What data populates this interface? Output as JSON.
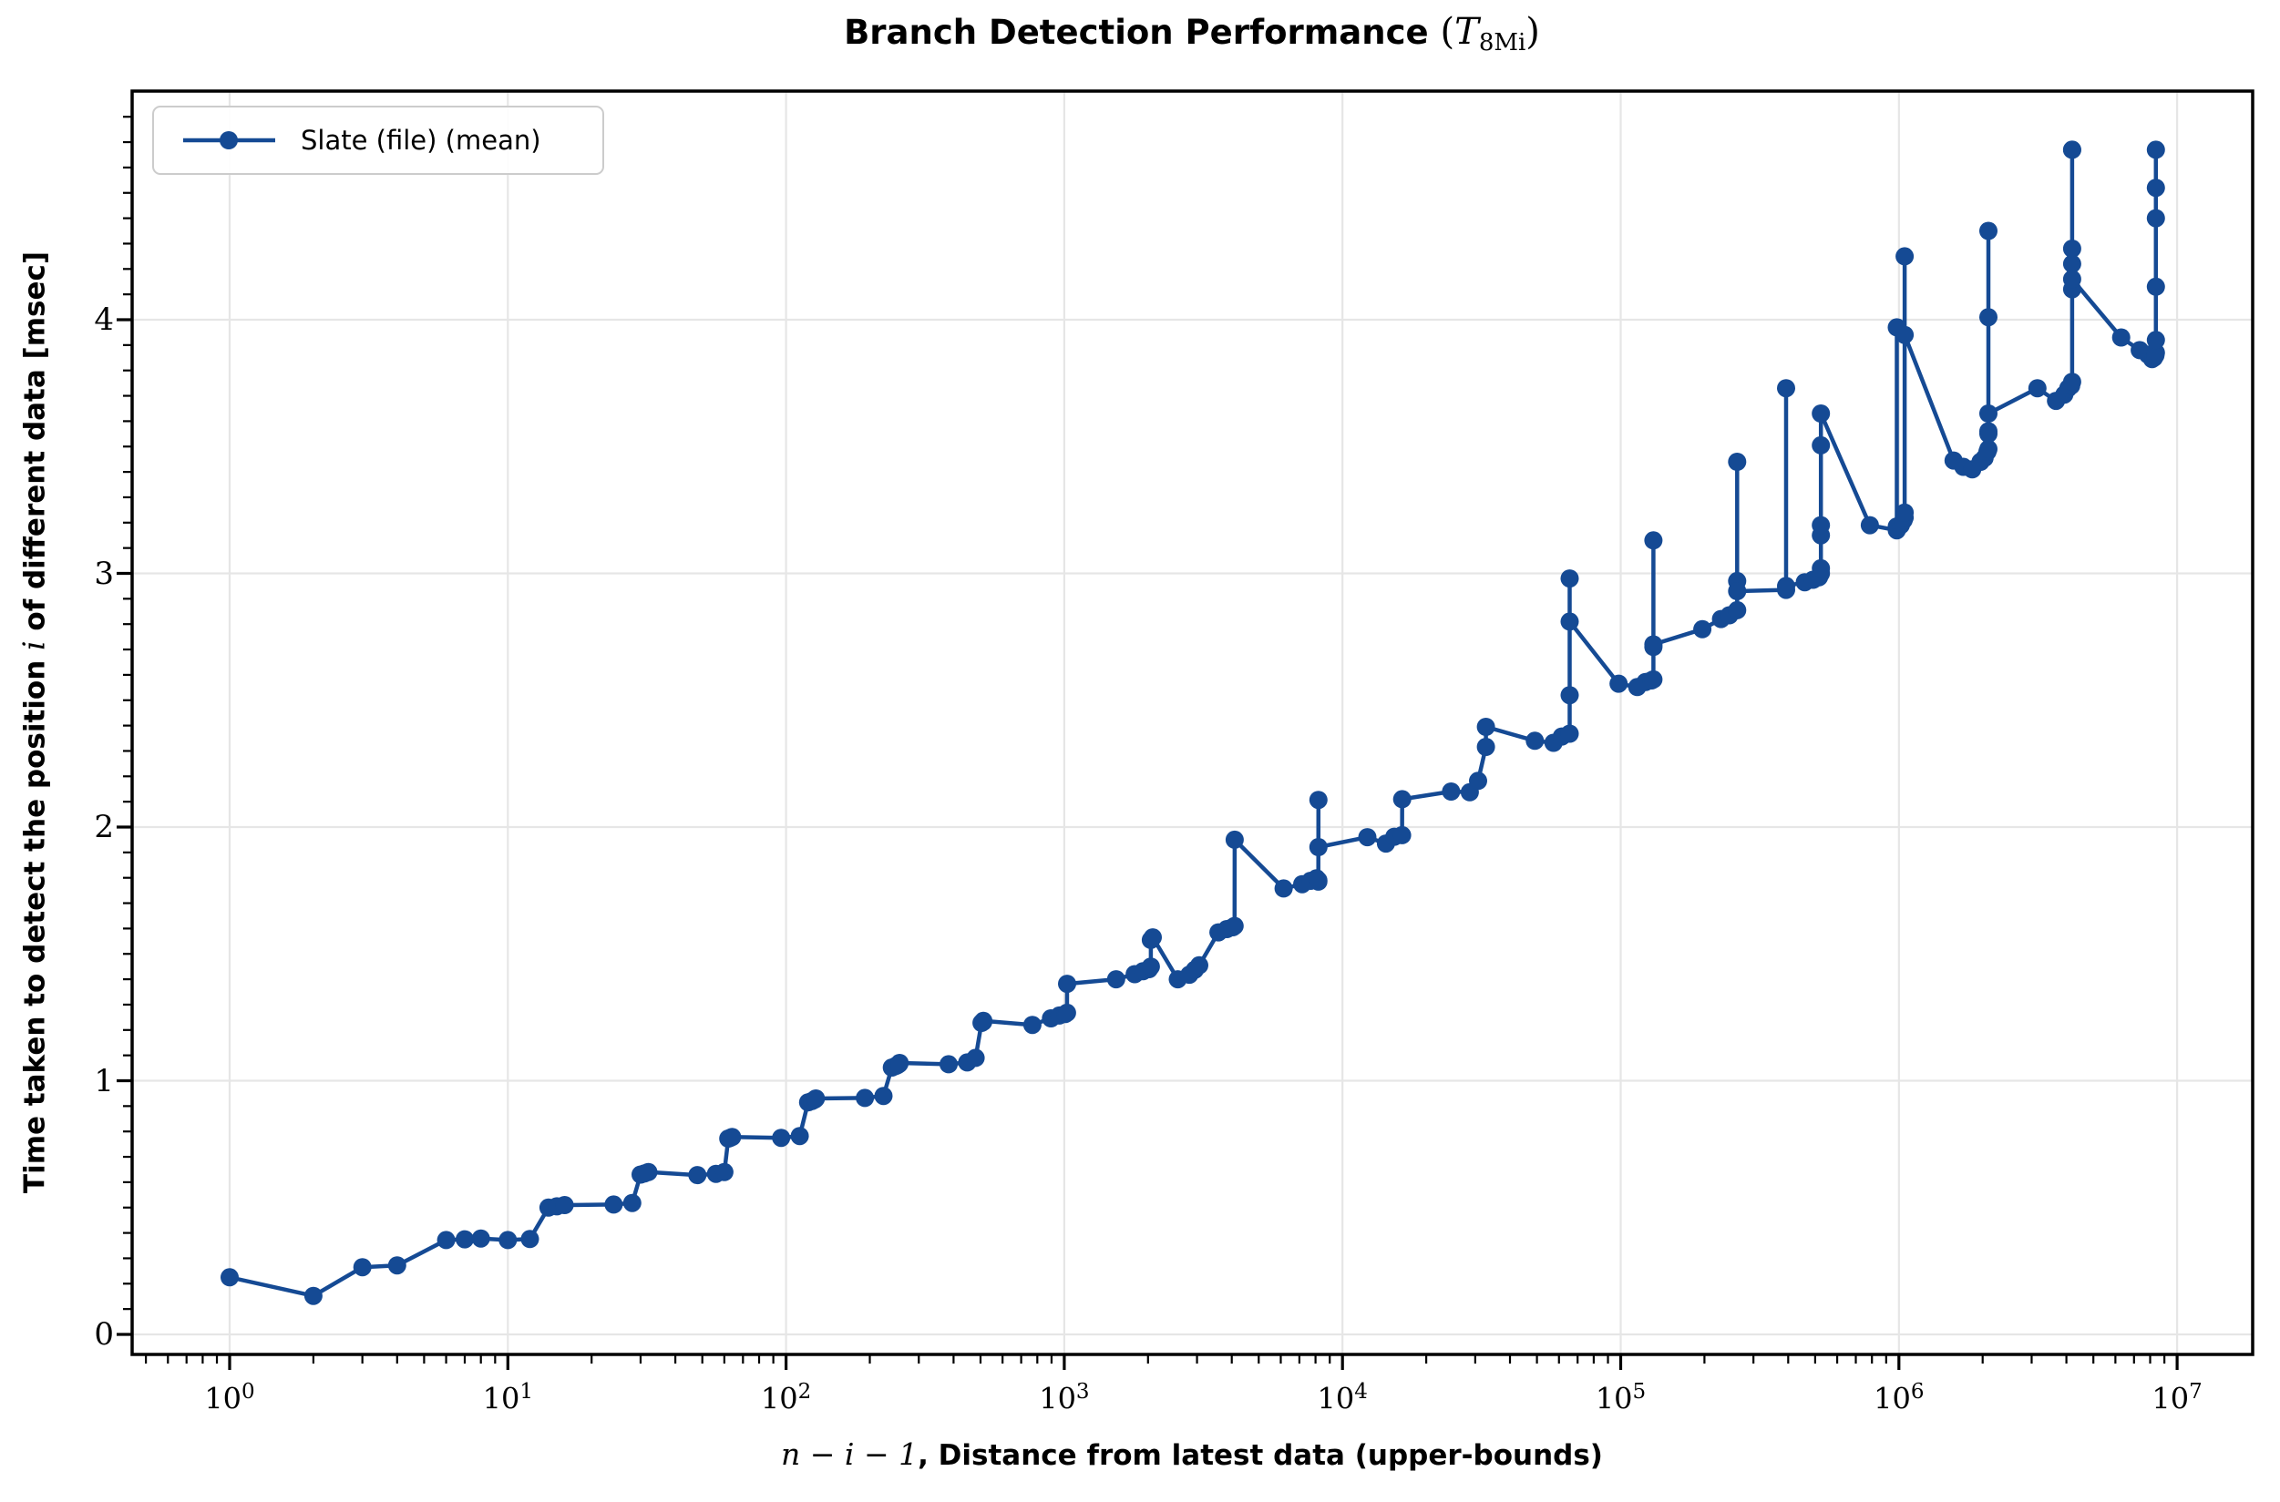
{
  "figure": {
    "title": {
      "text": "Branch Detection Performance ",
      "math_open": "(",
      "math_symbol": "T",
      "math_subscript": "8Mi",
      "math_close": ")"
    },
    "xlabel": {
      "math": "n − i − 1",
      "separator": ", ",
      "text": "Distance from latest data (upper-bounds)"
    },
    "ylabel": {
      "pre": "Time taken to detect the position ",
      "math": "i",
      "post": " of different data [msec]"
    },
    "legend": [
      {
        "label": "Slate (file) (mean)",
        "color": "#154a94"
      }
    ]
  },
  "colors": {
    "series": "#154a94",
    "grid": "#e6e6e6",
    "spine": "#000000",
    "background": "#ffffff",
    "legend_border": "#cccccc"
  },
  "chart_data": {
    "type": "line",
    "title": "Branch Detection Performance (T_8Mi)",
    "xlabel": "n - i - 1, Distance from latest data (upper-bounds)",
    "ylabel": "Time taken to detect the position i of different data [msec]",
    "x_scale": "log",
    "grid": true,
    "legend_position": "upper left",
    "xlim": [
      0.446,
      18700000
    ],
    "ylim": [
      -0.08,
      4.9
    ],
    "x_tick_base": 10,
    "x_tick_exponents": [
      0,
      1,
      2,
      3,
      4,
      5,
      6,
      7
    ],
    "y_ticks": [
      0,
      1,
      2,
      3,
      4
    ],
    "series": [
      {
        "name": "Slate (file) (mean)",
        "color": "#154a94",
        "marker": "circle",
        "points": [
          [
            1,
            0.225
          ],
          [
            2,
            0.152
          ],
          [
            3,
            0.265
          ],
          [
            4,
            0.272
          ],
          [
            6,
            0.372
          ],
          [
            7,
            0.375
          ],
          [
            8,
            0.378
          ],
          [
            10,
            0.372
          ],
          [
            12,
            0.376
          ],
          [
            14,
            0.5
          ],
          [
            15,
            0.505
          ],
          [
            16,
            0.51
          ],
          [
            24,
            0.512
          ],
          [
            28,
            0.518
          ],
          [
            30,
            0.63
          ],
          [
            31,
            0.635
          ],
          [
            32,
            0.64
          ],
          [
            48,
            0.628
          ],
          [
            56,
            0.633
          ],
          [
            60,
            0.64
          ],
          [
            62,
            0.772
          ],
          [
            63,
            0.775
          ],
          [
            64,
            0.778
          ],
          [
            96,
            0.775
          ],
          [
            112,
            0.782
          ],
          [
            120,
            0.915
          ],
          [
            124,
            0.92
          ],
          [
            127,
            0.926
          ],
          [
            128,
            0.93
          ],
          [
            192,
            0.932
          ],
          [
            224,
            0.94
          ],
          [
            240,
            1.052
          ],
          [
            248,
            1.058
          ],
          [
            252,
            1.062
          ],
          [
            255,
            1.066
          ],
          [
            256,
            1.07
          ],
          [
            384,
            1.065
          ],
          [
            448,
            1.072
          ],
          [
            480,
            1.09
          ],
          [
            504,
            1.228
          ],
          [
            511,
            1.232
          ],
          [
            512,
            1.236
          ],
          [
            768,
            1.22
          ],
          [
            896,
            1.246
          ],
          [
            960,
            1.257
          ],
          [
            1008,
            1.263
          ],
          [
            1023,
            1.268
          ],
          [
            1024,
            1.382
          ],
          [
            1536,
            1.4
          ],
          [
            1792,
            1.42
          ],
          [
            1920,
            1.432
          ],
          [
            2016,
            1.44
          ],
          [
            2047,
            1.45
          ],
          [
            2048,
            1.555
          ],
          [
            2080,
            1.565
          ],
          [
            2560,
            1.4
          ],
          [
            2816,
            1.418
          ],
          [
            2944,
            1.437
          ],
          [
            3056,
            1.455
          ],
          [
            3584,
            1.585
          ],
          [
            3840,
            1.598
          ],
          [
            4032,
            1.605
          ],
          [
            4095,
            1.61
          ],
          [
            4096,
            1.95
          ],
          [
            6142,
            1.758
          ],
          [
            7166,
            1.775
          ],
          [
            7680,
            1.788
          ],
          [
            8064,
            1.798
          ],
          [
            8190,
            1.785
          ],
          [
            8191,
            1.79
          ],
          [
            8192,
            2.107
          ],
          [
            8192,
            1.921
          ],
          [
            12286,
            1.96
          ],
          [
            14334,
            1.935
          ],
          [
            15358,
            1.962
          ],
          [
            16382,
            1.968
          ],
          [
            16384,
            2.11
          ],
          [
            24574,
            2.14
          ],
          [
            28670,
            2.137
          ],
          [
            30718,
            2.182
          ],
          [
            32768,
            2.316
          ],
          [
            32768,
            2.395
          ],
          [
            49150,
            2.34
          ],
          [
            57342,
            2.332
          ],
          [
            61438,
            2.357
          ],
          [
            65534,
            2.368
          ],
          [
            65536,
            2.52
          ],
          [
            65536,
            2.98
          ],
          [
            65536,
            2.81
          ],
          [
            98302,
            2.565
          ],
          [
            114686,
            2.552
          ],
          [
            122878,
            2.572
          ],
          [
            129022,
            2.578
          ],
          [
            131070,
            2.582
          ],
          [
            131072,
            2.71
          ],
          [
            131072,
            3.13
          ],
          [
            131072,
            2.72
          ],
          [
            196606,
            2.78
          ],
          [
            229374,
            2.82
          ],
          [
            245758,
            2.835
          ],
          [
            262142,
            2.855
          ],
          [
            262144,
            2.97
          ],
          [
            262144,
            3.44
          ],
          [
            262144,
            2.93
          ],
          [
            393214,
            2.935
          ],
          [
            393216,
            3.73
          ],
          [
            393216,
            2.95
          ],
          [
            458750,
            2.965
          ],
          [
            491518,
            2.975
          ],
          [
            516094,
            2.985
          ],
          [
            524286,
            3.0
          ],
          [
            524288,
            3.02
          ],
          [
            524288,
            3.15
          ],
          [
            524288,
            3.19
          ],
          [
            524288,
            3.505
          ],
          [
            524288,
            3.63
          ],
          [
            786430,
            3.19
          ],
          [
            983038,
            3.17
          ],
          [
            983040,
            3.97
          ],
          [
            983040,
            3.185
          ],
          [
            1015806,
            3.19
          ],
          [
            1040382,
            3.21
          ],
          [
            1048575,
            3.22
          ],
          [
            1048576,
            3.24
          ],
          [
            1048576,
            4.25
          ],
          [
            1048576,
            3.94
          ],
          [
            1572862,
            3.445
          ],
          [
            1703934,
            3.42
          ],
          [
            1835006,
            3.41
          ],
          [
            1966078,
            3.44
          ],
          [
            2031614,
            3.455
          ],
          [
            2080766,
            3.48
          ],
          [
            2097150,
            3.49
          ],
          [
            2097151,
            3.56
          ],
          [
            2097152,
            3.55
          ],
          [
            2097152,
            4.35
          ],
          [
            2097152,
            4.01
          ],
          [
            2097152,
            3.63
          ],
          [
            3145726,
            3.73
          ],
          [
            3670014,
            3.68
          ],
          [
            3932158,
            3.705
          ],
          [
            4063230,
            3.73
          ],
          [
            4160510,
            3.74
          ],
          [
            4194302,
            3.755
          ],
          [
            4194303,
            4.28
          ],
          [
            4194303,
            4.67
          ],
          [
            4194303,
            4.12
          ],
          [
            4194304,
            4.67
          ],
          [
            4194304,
            4.22
          ],
          [
            4194304,
            4.16
          ],
          [
            6291454,
            3.93
          ],
          [
            7340030,
            3.88
          ],
          [
            7864318,
            3.862
          ],
          [
            8126462,
            3.845
          ],
          [
            8257534,
            3.85
          ],
          [
            8355838,
            3.86
          ],
          [
            8388606,
            3.87
          ],
          [
            8388607,
            3.92
          ],
          [
            8388607,
            4.13
          ],
          [
            8388607,
            4.4
          ],
          [
            8388607,
            4.52
          ],
          [
            8388607,
            4.67
          ]
        ]
      }
    ]
  }
}
